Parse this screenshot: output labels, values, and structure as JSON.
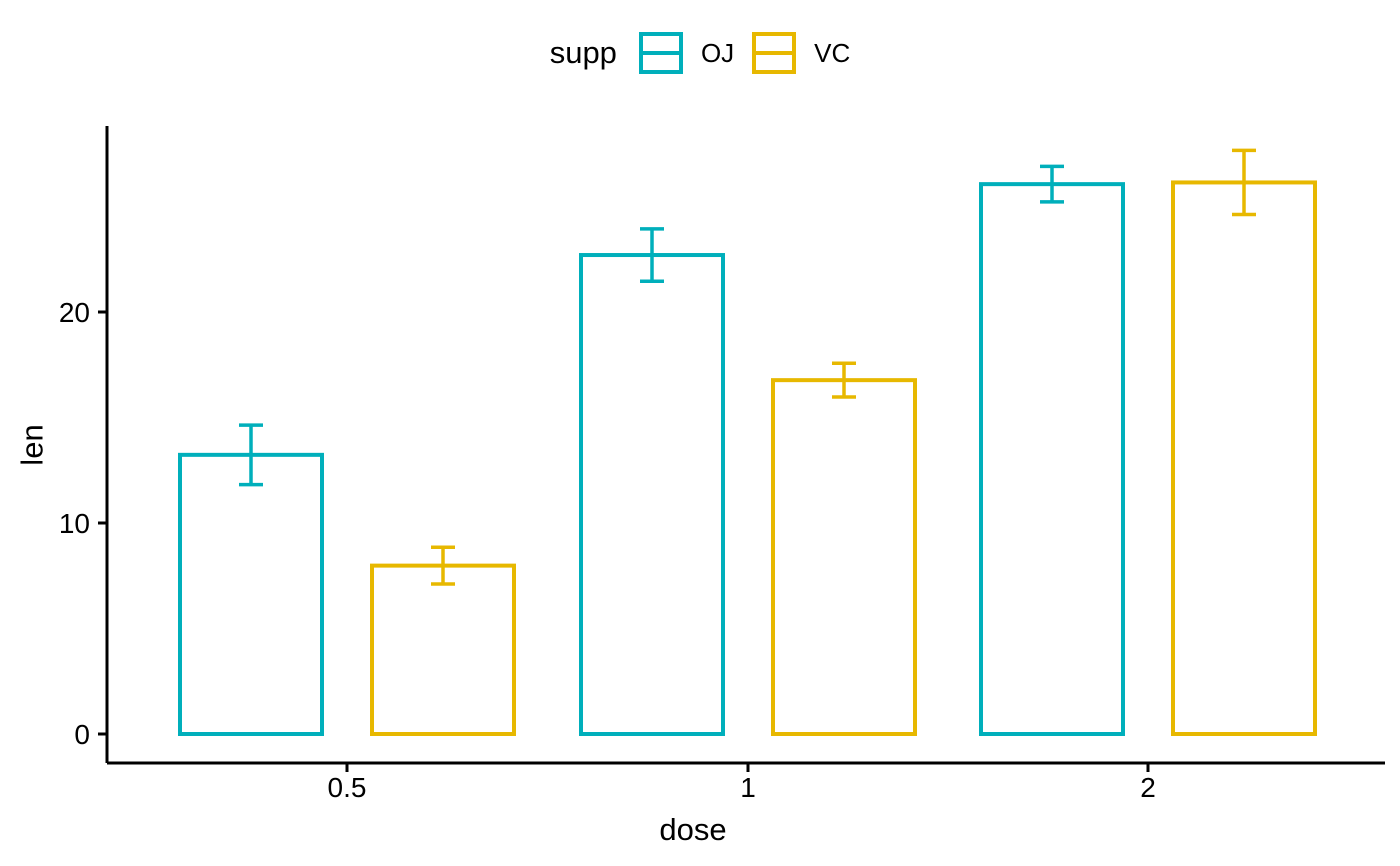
{
  "chart_data": {
    "type": "bar",
    "title": "",
    "xlabel": "dose",
    "ylabel": "len",
    "categories": [
      "0.5",
      "1",
      "2"
    ],
    "series": [
      {
        "name": "OJ",
        "color": "#00AFBB",
        "means": [
          13.23,
          22.7,
          26.06
        ],
        "se": [
          1.41,
          1.24,
          0.84
        ]
      },
      {
        "name": "VC",
        "color": "#E7B800",
        "means": [
          7.98,
          16.77,
          26.14
        ],
        "se": [
          0.87,
          0.8,
          1.52
        ]
      }
    ],
    "error_bars": "mean ± standard error",
    "bar_fill": "#ffffff",
    "y_ticks": [
      0,
      10,
      20
    ],
    "ylim": [
      0,
      28.8
    ],
    "grid": false,
    "axis_color": "#000000",
    "text_color": "#000000",
    "legend": {
      "title": "supp",
      "position": "top-center"
    }
  }
}
